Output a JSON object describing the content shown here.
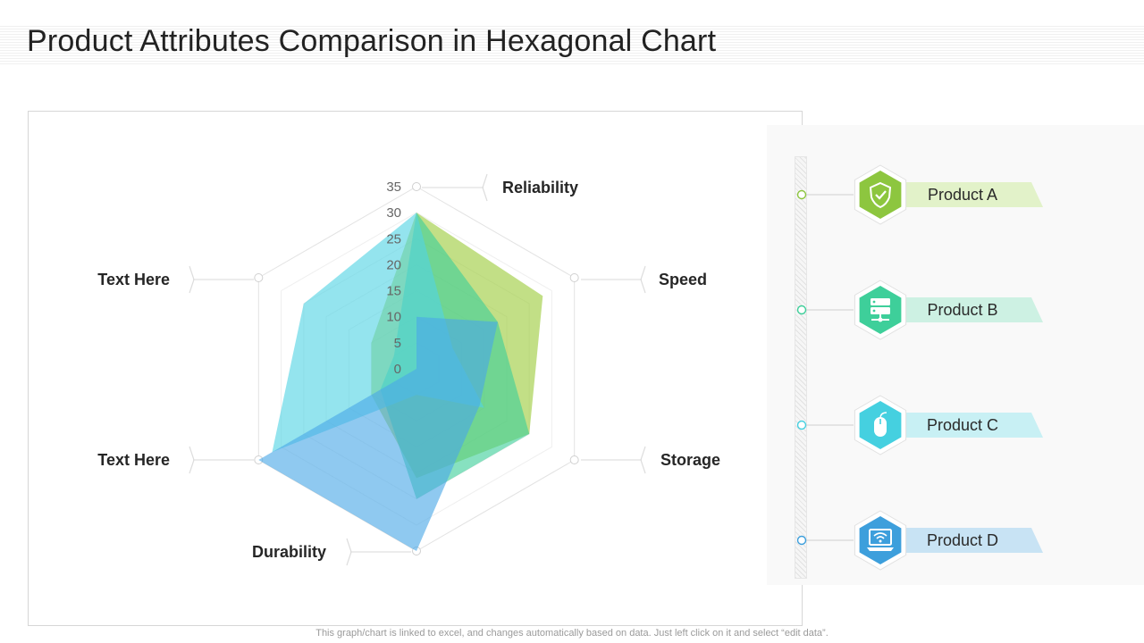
{
  "title": "Product Attributes Comparison in Hexagonal Chart",
  "footer_note": "This graph/chart is linked to excel, and changes automatically based on data. Just left click on it and select “edit data”.",
  "chart_data": {
    "type": "radar",
    "axes": [
      "Reliability",
      "Speed",
      "Storage",
      "Durability",
      "Text Here",
      "Text Here"
    ],
    "scale_ticks": [
      "35",
      "30",
      "25",
      "20",
      "15",
      "10",
      "5",
      "0"
    ],
    "range": [
      0,
      35
    ],
    "series": [
      {
        "name": "Product A",
        "color": "#9ccc3c",
        "values": [
          30,
          28,
          25,
          21,
          10,
          10
        ]
      },
      {
        "name": "Product B",
        "color": "#3ecf9a",
        "values": [
          30,
          18,
          25,
          25,
          8,
          5
        ]
      },
      {
        "name": "Product C",
        "color": "#52d4e3",
        "values": [
          30,
          8,
          15,
          5,
          32,
          25
        ]
      },
      {
        "name": "Product D",
        "color": "#4aa8e6",
        "values": [
          10,
          18,
          14,
          35,
          35,
          0
        ]
      }
    ]
  },
  "legend": [
    {
      "label": "Product A",
      "icon": "shield-check-icon",
      "color": "#8dc63f",
      "tag": "#e2f2c9"
    },
    {
      "label": "Product B",
      "icon": "server-icon",
      "color": "#3ecf9a",
      "tag": "#cdf1e3"
    },
    {
      "label": "Product C",
      "icon": "mouse-icon",
      "color": "#45d0e0",
      "tag": "#c8f0f4"
    },
    {
      "label": "Product D",
      "icon": "laptop-wifi-icon",
      "color": "#3d9fdc",
      "tag": "#c8e3f4"
    }
  ]
}
